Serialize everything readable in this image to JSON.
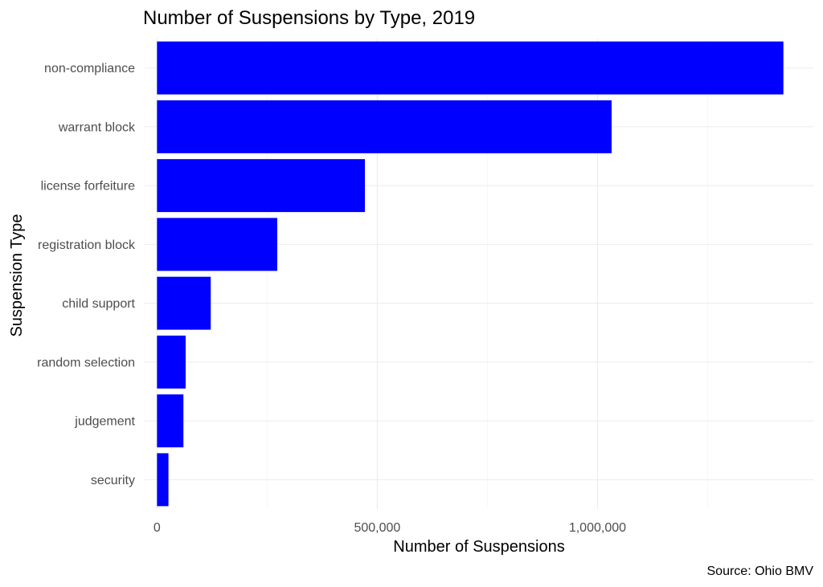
{
  "chart_data": {
    "type": "bar",
    "orientation": "horizontal",
    "title": "Number of Suspensions by Type, 2019",
    "xlabel": "Number of Suspensions",
    "ylabel": "Suspension Type",
    "caption": "Source: Ohio BMV",
    "categories": [
      "non-compliance",
      "warrant block",
      "license forfeiture",
      "registration block",
      "child support",
      "random selection",
      "judgement",
      "security"
    ],
    "values": [
      1422000,
      1032000,
      472000,
      273000,
      122000,
      65000,
      60000,
      26000
    ],
    "xlim": [
      -28000,
      1490000
    ],
    "x_ticks": [
      0,
      500000,
      1000000
    ],
    "x_tick_labels": [
      "0",
      "500,000",
      "1,000,000"
    ],
    "x_minor_ticks": [
      250000,
      750000,
      1250000
    ],
    "bar_color": "#0000ff",
    "grid": true,
    "legend": "none"
  }
}
